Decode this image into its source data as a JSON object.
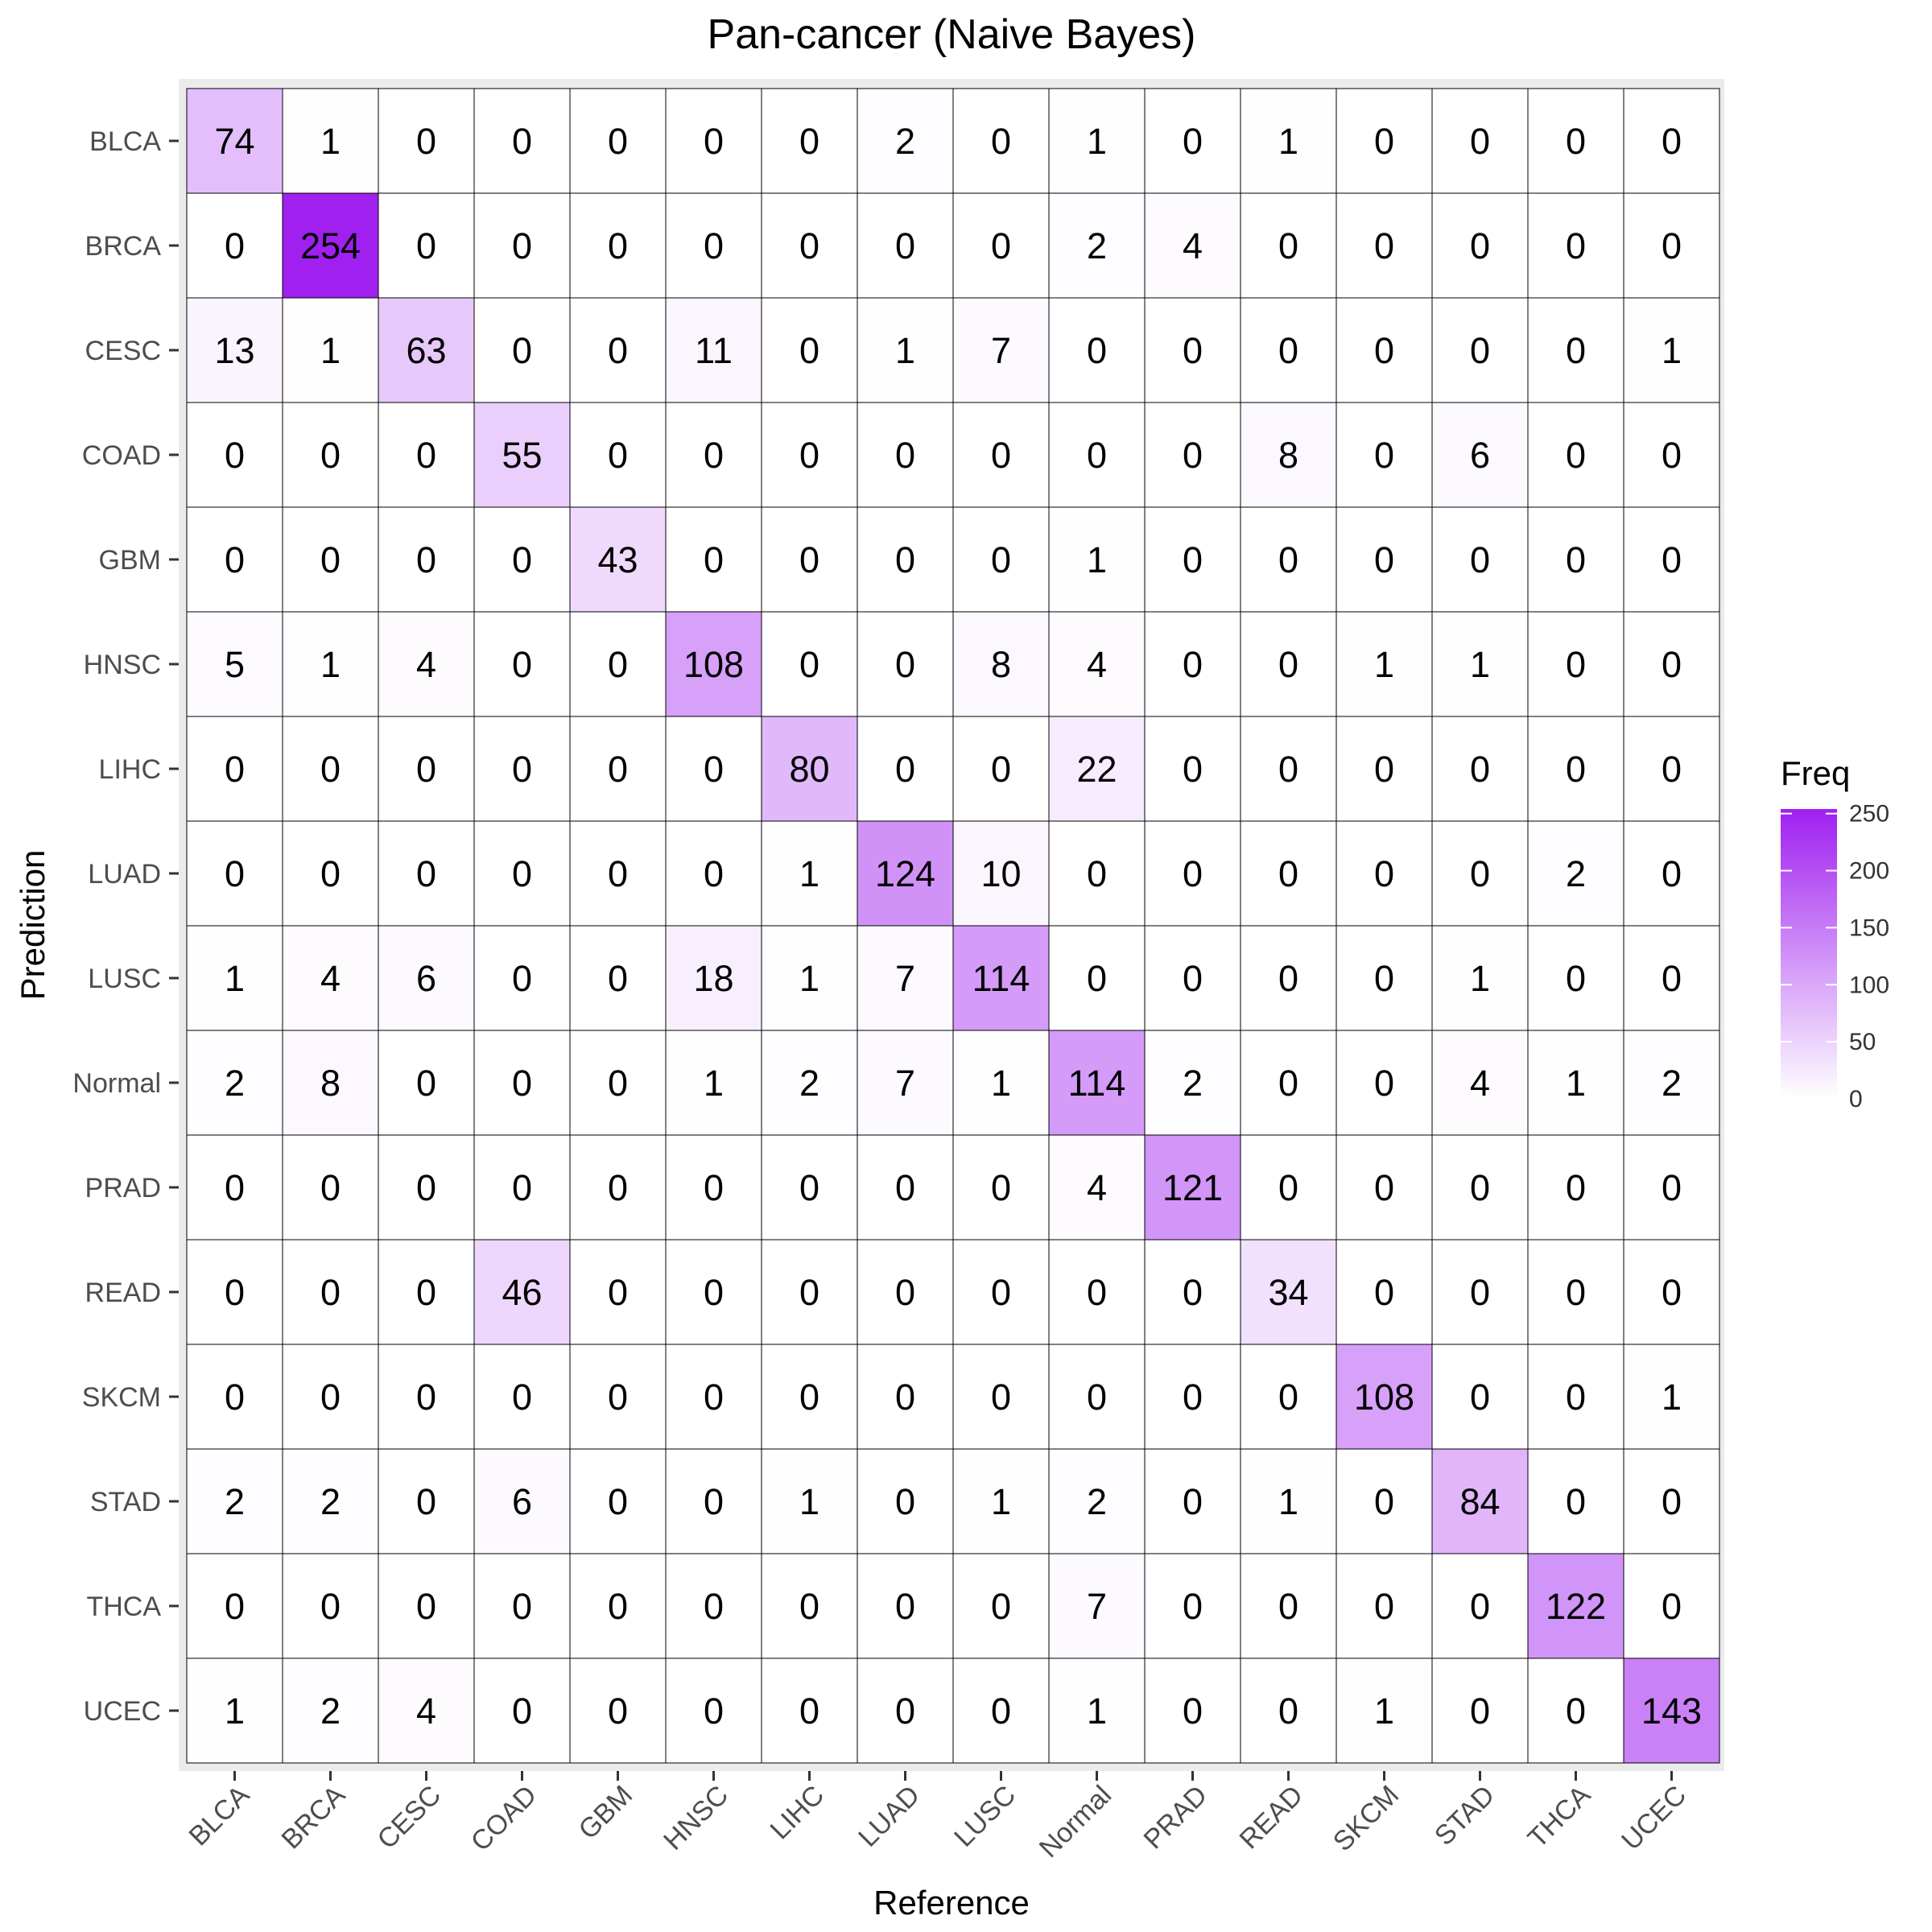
{
  "chart_data": {
    "type": "heatmap",
    "title": "Pan-cancer (Naive Bayes)",
    "xlabel": "Reference",
    "ylabel": "Prediction",
    "x_categories": [
      "BLCA",
      "BRCA",
      "CESC",
      "COAD",
      "GBM",
      "HNSC",
      "LIHC",
      "LUAD",
      "LUSC",
      "Normal",
      "PRAD",
      "READ",
      "SKCM",
      "STAD",
      "THCA",
      "UCEC"
    ],
    "y_categories": [
      "BLCA",
      "BRCA",
      "CESC",
      "COAD",
      "GBM",
      "HNSC",
      "LIHC",
      "LUAD",
      "LUSC",
      "Normal",
      "PRAD",
      "READ",
      "SKCM",
      "STAD",
      "THCA",
      "UCEC"
    ],
    "values": [
      [
        74,
        1,
        0,
        0,
        0,
        0,
        0,
        2,
        0,
        1,
        0,
        1,
        0,
        0,
        0,
        0
      ],
      [
        0,
        254,
        0,
        0,
        0,
        0,
        0,
        0,
        0,
        2,
        4,
        0,
        0,
        0,
        0,
        0
      ],
      [
        13,
        1,
        63,
        0,
        0,
        11,
        0,
        1,
        7,
        0,
        0,
        0,
        0,
        0,
        0,
        1
      ],
      [
        0,
        0,
        0,
        55,
        0,
        0,
        0,
        0,
        0,
        0,
        0,
        8,
        0,
        6,
        0,
        0
      ],
      [
        0,
        0,
        0,
        0,
        43,
        0,
        0,
        0,
        0,
        1,
        0,
        0,
        0,
        0,
        0,
        0
      ],
      [
        5,
        1,
        4,
        0,
        0,
        108,
        0,
        0,
        8,
        4,
        0,
        0,
        1,
        1,
        0,
        0
      ],
      [
        0,
        0,
        0,
        0,
        0,
        0,
        80,
        0,
        0,
        22,
        0,
        0,
        0,
        0,
        0,
        0
      ],
      [
        0,
        0,
        0,
        0,
        0,
        0,
        1,
        124,
        10,
        0,
        0,
        0,
        0,
        0,
        2,
        0
      ],
      [
        1,
        4,
        6,
        0,
        0,
        18,
        1,
        7,
        114,
        0,
        0,
        0,
        0,
        1,
        0,
        0
      ],
      [
        2,
        8,
        0,
        0,
        0,
        1,
        2,
        7,
        1,
        114,
        2,
        0,
        0,
        4,
        1,
        2
      ],
      [
        0,
        0,
        0,
        0,
        0,
        0,
        0,
        0,
        0,
        4,
        121,
        0,
        0,
        0,
        0,
        0
      ],
      [
        0,
        0,
        0,
        46,
        0,
        0,
        0,
        0,
        0,
        0,
        0,
        34,
        0,
        0,
        0,
        0
      ],
      [
        0,
        0,
        0,
        0,
        0,
        0,
        0,
        0,
        0,
        0,
        0,
        0,
        108,
        0,
        0,
        1
      ],
      [
        2,
        2,
        0,
        6,
        0,
        0,
        1,
        0,
        1,
        2,
        0,
        1,
        0,
        84,
        0,
        0
      ],
      [
        0,
        0,
        0,
        0,
        0,
        0,
        0,
        0,
        0,
        7,
        0,
        0,
        0,
        0,
        122,
        0
      ],
      [
        1,
        2,
        4,
        0,
        0,
        0,
        0,
        0,
        0,
        1,
        0,
        0,
        1,
        0,
        0,
        143
      ]
    ],
    "color_low": "#ffffff",
    "color_high": "#a020f0",
    "value_range": [
      0,
      254
    ],
    "legend": {
      "title": "Freq",
      "ticks": [
        0,
        50,
        100,
        150,
        200,
        250
      ],
      "placement": "right"
    },
    "grid": false
  }
}
